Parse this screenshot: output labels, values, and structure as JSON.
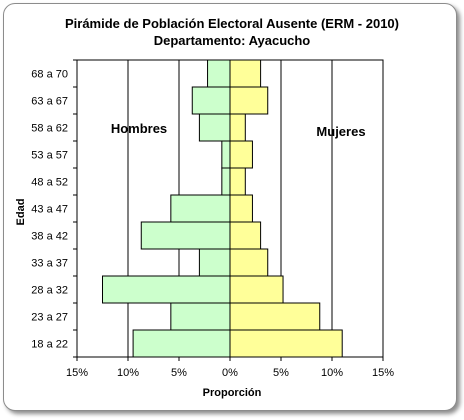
{
  "chart_data": {
    "type": "bar",
    "orientation": "horizontal-pyramid",
    "title": "Pirámide de Población Electoral Ausente (ERM - 2010)",
    "subtitle": "Departamento: Ayacucho",
    "xlabel": "Proporción",
    "ylabel": "Edad",
    "xlim": [
      -15,
      15
    ],
    "x_ticks": [
      "15%",
      "10%",
      "5%",
      "0%",
      "5%",
      "10%",
      "15%"
    ],
    "categories": [
      "68 a 70",
      "63 a 67",
      "58 a 62",
      "53 a 57",
      "48 a 52",
      "43 a 47",
      "38 a 42",
      "33 a 37",
      "28 a 32",
      "23 a 27",
      "18 a 22"
    ],
    "series": [
      {
        "name": "Hombres",
        "color": "#ccffcc",
        "values": [
          2.2,
          3.7,
          3.0,
          0.8,
          0.8,
          5.8,
          8.7,
          3.0,
          12.5,
          5.8,
          9.5
        ]
      },
      {
        "name": "Mujeres",
        "color": "#ffff99",
        "values": [
          3.0,
          3.7,
          1.5,
          2.2,
          1.5,
          2.2,
          3.0,
          3.7,
          5.2,
          8.8,
          11.0
        ]
      }
    ],
    "grid": true,
    "bar_border_color": "#000000"
  }
}
